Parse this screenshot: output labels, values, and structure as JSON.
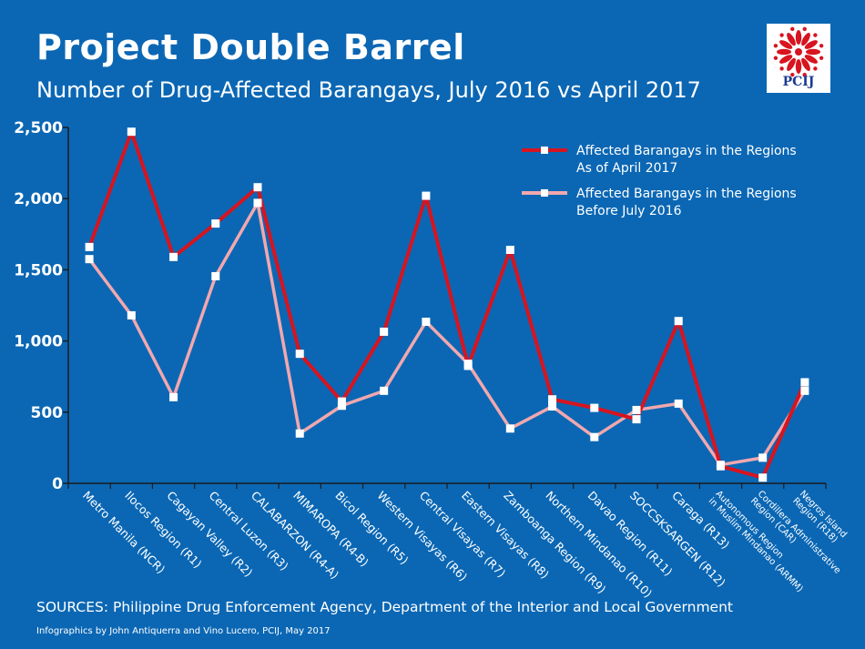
{
  "header": {
    "title": "Project Double Barrel",
    "subtitle": "Number of Drug-Affected Barangays, July 2016 vs April 2017"
  },
  "logo": {
    "text": "PCIJ"
  },
  "footer": {
    "sources": "SOURCES: Philippine Drug Enforcement Agency, Department of the Interior and Local Government",
    "credits": "Infographics by John Antiquerra and Vino Lucero, PCIJ, May 2017"
  },
  "colors": {
    "background": "#0b67b4",
    "april_2017": "#d7141f",
    "before_july_2016": "#f1a8ae",
    "marker": "#ffffff",
    "axis": "#1b1b1b"
  },
  "chart_data": {
    "type": "line",
    "title": "Number of Drug-Affected Barangays, July 2016 vs April 2017",
    "xlabel": "",
    "ylabel": "",
    "ylim": [
      0,
      2500
    ],
    "yticks": [
      "0",
      "500",
      "1,000",
      "1,500",
      "2,000",
      "2,500"
    ],
    "ytick_values": [
      0,
      500,
      1000,
      1500,
      2000,
      2500
    ],
    "grid": false,
    "legend_position": "top-right",
    "categories": [
      [
        "Metro Manila (NCR)"
      ],
      [
        "Ilocos Region (R1)"
      ],
      [
        "Cagayan Valley (R2)"
      ],
      [
        "Central Luzon (R3)"
      ],
      [
        "CALABARZON (R4-A)"
      ],
      [
        "MIMAROPA (R4-B)"
      ],
      [
        "Bicol Region (R5)"
      ],
      [
        "Western Visayas (R6)"
      ],
      [
        "Central Visayas (R7)"
      ],
      [
        "Eastern Visayas (R8)"
      ],
      [
        "Zamboanga Region (R9)"
      ],
      [
        "Northern Mindanao (R10)"
      ],
      [
        "Davao Region (R11)"
      ],
      [
        "SOCCSKSARGEN (R12)"
      ],
      [
        "Caraga (R13)"
      ],
      [
        "Autonomous Region",
        "in Muslim Mindanao (ARMM)"
      ],
      [
        "Cordillera Administrative",
        "Region (CAR)"
      ],
      [
        "Negros Island",
        "Region (R18)"
      ]
    ],
    "series": [
      {
        "name": [
          "Affected Barangays in the Regions",
          "As of April 2017"
        ],
        "values": [
          1660,
          2470,
          1590,
          1825,
          2080,
          910,
          575,
          1065,
          2020,
          825,
          1640,
          590,
          530,
          450,
          1140,
          120,
          40,
          710
        ]
      },
      {
        "name": [
          "Affected Barangays in the Regions",
          "Before July 2016"
        ],
        "values": [
          1575,
          1180,
          605,
          1455,
          1970,
          350,
          545,
          650,
          1135,
          840,
          385,
          540,
          325,
          515,
          560,
          130,
          180,
          650
        ]
      }
    ]
  }
}
